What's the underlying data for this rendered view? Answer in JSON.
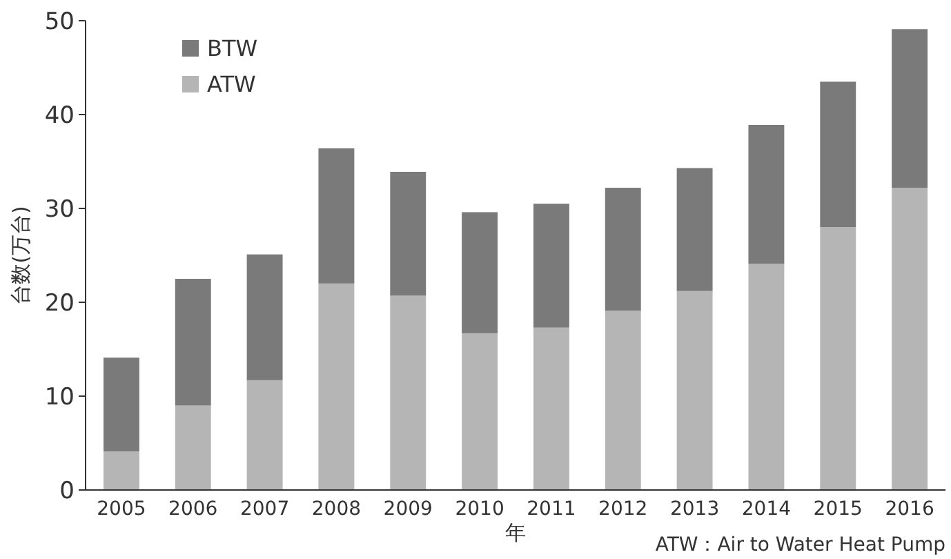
{
  "chart_data": {
    "type": "bar",
    "stacked": true,
    "xlabel": "年",
    "ylabel": "台数(万台)",
    "categories": [
      "2005",
      "2006",
      "2007",
      "2008",
      "2009",
      "2010",
      "2011",
      "2012",
      "2013",
      "2014",
      "2015",
      "2016"
    ],
    "series": [
      {
        "name": "ATW",
        "color": "#b5b5b5",
        "values": [
          4.1,
          9.0,
          11.7,
          22.0,
          20.7,
          16.7,
          17.3,
          19.1,
          21.2,
          24.1,
          28.0,
          32.2
        ]
      },
      {
        "name": "BTW",
        "color": "#7a7a7a",
        "values": [
          10.0,
          13.5,
          13.4,
          14.4,
          13.2,
          12.9,
          13.2,
          13.1,
          13.1,
          14.8,
          15.5,
          16.9
        ]
      }
    ],
    "ylim": [
      0,
      50
    ],
    "yticks": [
      0,
      10,
      20,
      30,
      40,
      50
    ],
    "grid": false,
    "legend": "top left",
    "annotations": [
      "ATW：Air to Water Heat Pump"
    ]
  }
}
